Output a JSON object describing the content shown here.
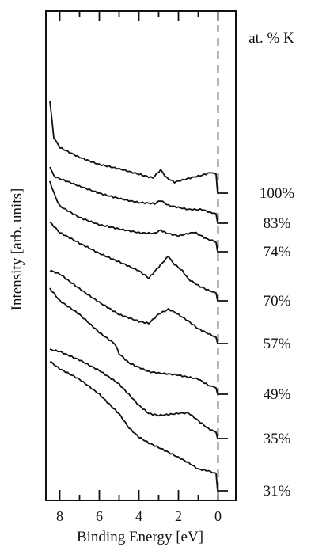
{
  "chart_data": {
    "type": "line",
    "xlabel": "Binding Energy [eV]",
    "ylabel": "Intensity [arb. units]",
    "xlim": [
      8.7,
      -0.9
    ],
    "x_ticks": [
      "8",
      "6",
      "4",
      "2",
      "0"
    ],
    "legend_title": "at. % K",
    "fermi_level_marker": 0,
    "series": [
      {
        "name": "100%",
        "points": [
          [
            8.5,
            25.2
          ],
          [
            8.3,
            22.9
          ],
          [
            8.0,
            22.3
          ],
          [
            7.0,
            21.7
          ],
          [
            6.0,
            21.2
          ],
          [
            5.0,
            20.9
          ],
          [
            4.0,
            20.6
          ],
          [
            3.3,
            20.4
          ],
          [
            2.9,
            20.9
          ],
          [
            2.6,
            20.4
          ],
          [
            2.2,
            20.1
          ],
          [
            1.5,
            20.3
          ],
          [
            0.8,
            20.5
          ],
          [
            0.3,
            20.7
          ],
          [
            0.1,
            20.6
          ],
          [
            0.02,
            19.4
          ],
          [
            -0.5,
            19.4
          ]
        ]
      },
      {
        "name": "83%",
        "points": [
          [
            8.5,
            21.1
          ],
          [
            8.3,
            20.5
          ],
          [
            8.0,
            20.3
          ],
          [
            7.0,
            19.8
          ],
          [
            6.0,
            19.4
          ],
          [
            5.0,
            19.1
          ],
          [
            4.0,
            18.8
          ],
          [
            3.2,
            18.7
          ],
          [
            2.9,
            18.9
          ],
          [
            2.5,
            18.6
          ],
          [
            1.5,
            18.4
          ],
          [
            0.8,
            18.4
          ],
          [
            0.4,
            18.2
          ],
          [
            0.1,
            18.1
          ],
          [
            0.02,
            17.5
          ],
          [
            -0.5,
            17.5
          ]
        ]
      },
      {
        "name": "74%",
        "points": [
          [
            8.5,
            20.1
          ],
          [
            8.2,
            19.1
          ],
          [
            8.0,
            18.6
          ],
          [
            7.0,
            17.9
          ],
          [
            6.0,
            17.4
          ],
          [
            5.0,
            17.1
          ],
          [
            4.0,
            16.9
          ],
          [
            3.2,
            16.9
          ],
          [
            2.9,
            17.1
          ],
          [
            2.6,
            16.9
          ],
          [
            2.0,
            16.7
          ],
          [
            1.2,
            16.9
          ],
          [
            0.6,
            16.5
          ],
          [
            0.1,
            16.3
          ],
          [
            0.02,
            15.7
          ],
          [
            -0.5,
            15.7
          ]
        ]
      },
      {
        "name": "70%",
        "points": [
          [
            8.5,
            17.6
          ],
          [
            8.0,
            16.9
          ],
          [
            7.0,
            16.2
          ],
          [
            6.0,
            15.6
          ],
          [
            5.0,
            15.1
          ],
          [
            4.0,
            14.5
          ],
          [
            3.5,
            14.0
          ],
          [
            3.0,
            14.7
          ],
          [
            2.5,
            15.4
          ],
          [
            2.3,
            15.0
          ],
          [
            1.8,
            14.5
          ],
          [
            1.5,
            14.0
          ],
          [
            1.0,
            13.6
          ],
          [
            0.5,
            13.3
          ],
          [
            0.1,
            13.1
          ],
          [
            0.02,
            12.6
          ],
          [
            -0.5,
            12.6
          ]
        ]
      },
      {
        "name": "57%",
        "points": [
          [
            8.5,
            14.5
          ],
          [
            8.0,
            14.3
          ],
          [
            7.0,
            13.4
          ],
          [
            6.0,
            12.5
          ],
          [
            5.0,
            11.7
          ],
          [
            4.0,
            11.3
          ],
          [
            3.5,
            11.2
          ],
          [
            3.0,
            11.8
          ],
          [
            2.5,
            12.1
          ],
          [
            2.2,
            11.9
          ],
          [
            1.5,
            11.3
          ],
          [
            1.0,
            10.8
          ],
          [
            0.5,
            10.5
          ],
          [
            0.1,
            10.3
          ],
          [
            0.02,
            9.9
          ],
          [
            -0.5,
            9.9
          ]
        ]
      },
      {
        "name": "49%",
        "points": [
          [
            8.5,
            13.4
          ],
          [
            8.0,
            12.6
          ],
          [
            7.0,
            11.7
          ],
          [
            6.0,
            10.6
          ],
          [
            5.2,
            9.9
          ],
          [
            5.0,
            9.3
          ],
          [
            4.5,
            8.7
          ],
          [
            4.0,
            8.4
          ],
          [
            3.5,
            8.1
          ],
          [
            3.0,
            8.0
          ],
          [
            2.0,
            7.9
          ],
          [
            1.0,
            7.7
          ],
          [
            0.5,
            7.3
          ],
          [
            0.1,
            7.1
          ],
          [
            0.02,
            6.7
          ],
          [
            -0.5,
            6.7
          ]
        ]
      },
      {
        "name": "35%",
        "points": [
          [
            8.5,
            9.5
          ],
          [
            8.0,
            9.4
          ],
          [
            7.0,
            8.9
          ],
          [
            6.0,
            8.2
          ],
          [
            5.0,
            7.3
          ],
          [
            4.0,
            6.0
          ],
          [
            3.5,
            5.5
          ],
          [
            3.0,
            5.4
          ],
          [
            2.0,
            5.5
          ],
          [
            1.5,
            5.5
          ],
          [
            1.0,
            5.0
          ],
          [
            0.5,
            4.5
          ],
          [
            0.1,
            4.3
          ],
          [
            0.02,
            3.9
          ],
          [
            -0.5,
            3.9
          ]
        ]
      },
      {
        "name": "31%",
        "points": [
          [
            8.5,
            8.8
          ],
          [
            8.0,
            8.3
          ],
          [
            7.0,
            7.6
          ],
          [
            6.0,
            6.7
          ],
          [
            5.0,
            5.5
          ],
          [
            4.5,
            4.6
          ],
          [
            4.0,
            4.0
          ],
          [
            3.5,
            3.6
          ],
          [
            2.5,
            3.0
          ],
          [
            1.5,
            2.4
          ],
          [
            1.0,
            2.0
          ],
          [
            0.5,
            1.9
          ],
          [
            0.1,
            1.7
          ],
          [
            0.02,
            0.6
          ],
          [
            -0.5,
            0.6
          ]
        ]
      }
    ],
    "grid": false,
    "legend_position": "right"
  }
}
